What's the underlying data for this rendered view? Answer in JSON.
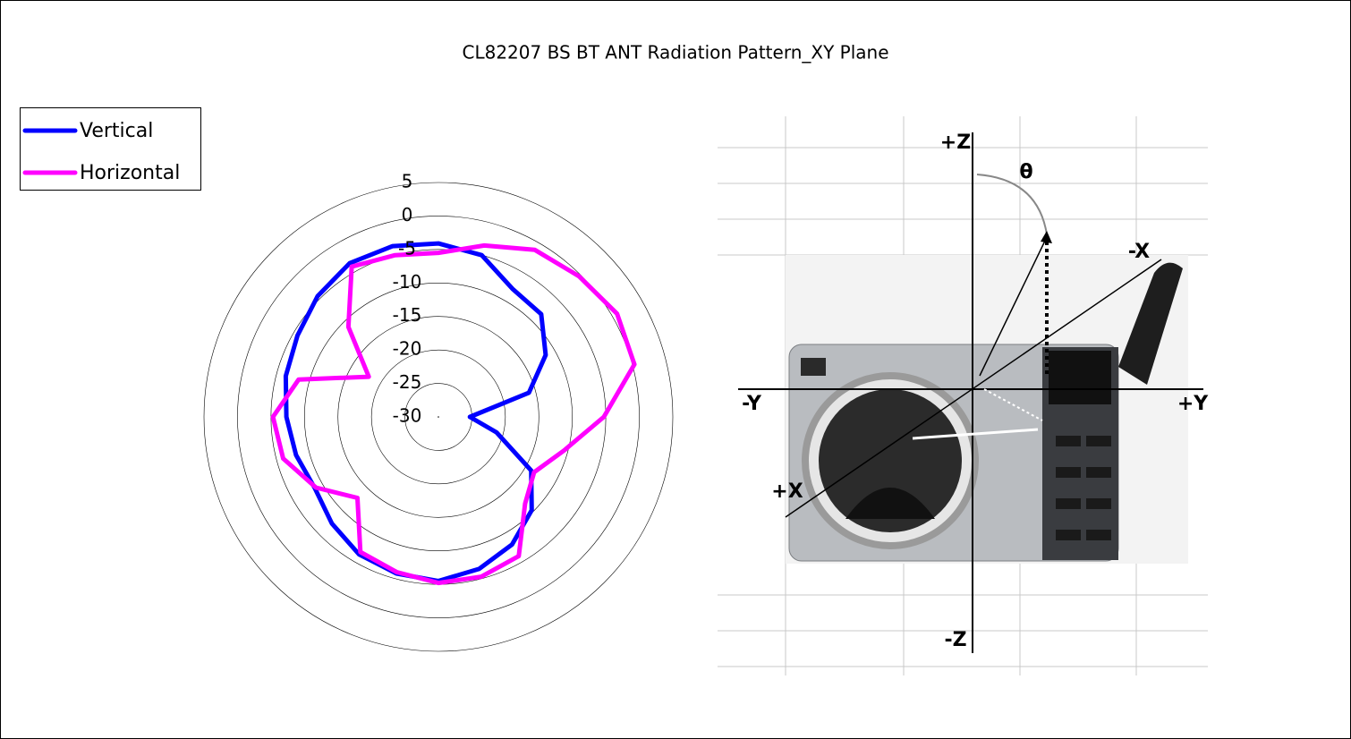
{
  "chart_data": {
    "type": "radar",
    "title": "CL82207 BS BT ANT Radiation Pattern_XY Plane",
    "rlim": [
      -30,
      5
    ],
    "rticks": [
      -30,
      -25,
      -20,
      -15,
      -10,
      -5,
      0,
      5
    ],
    "legend": "top-left",
    "series": [
      {
        "name": "Vertical",
        "color": "#0000ff",
        "values": [
          -4.1,
          -5.0,
          -7.9,
          -8.3,
          -11.5,
          -16,
          -25.3,
          -21,
          -14,
          -10.3,
          -8,
          -6.5,
          -5.5,
          -5.8,
          -6.3,
          -7.5,
          -8.7,
          -8,
          -7.3,
          -6.4,
          -5.7,
          -4.5,
          -3.5,
          -3.6
        ]
      },
      {
        "name": "Horizontal",
        "color": "#ff00ff",
        "values": [
          -5.5,
          -3.5,
          -1.2,
          -0.3,
          0.8,
          0.3,
          -5.3,
          -10.6,
          -13.5,
          -11.7,
          -6,
          -5.3,
          -5.2,
          -6,
          -6.7,
          -12.9,
          -8.9,
          -6,
          -5.3,
          -8.4,
          -18,
          -11,
          -4.1,
          -5
        ]
      }
    ]
  },
  "diagram": {
    "labels": [
      "+Z",
      "θ",
      "-X",
      "-Y",
      "+Y",
      "+X",
      "-Z"
    ]
  }
}
